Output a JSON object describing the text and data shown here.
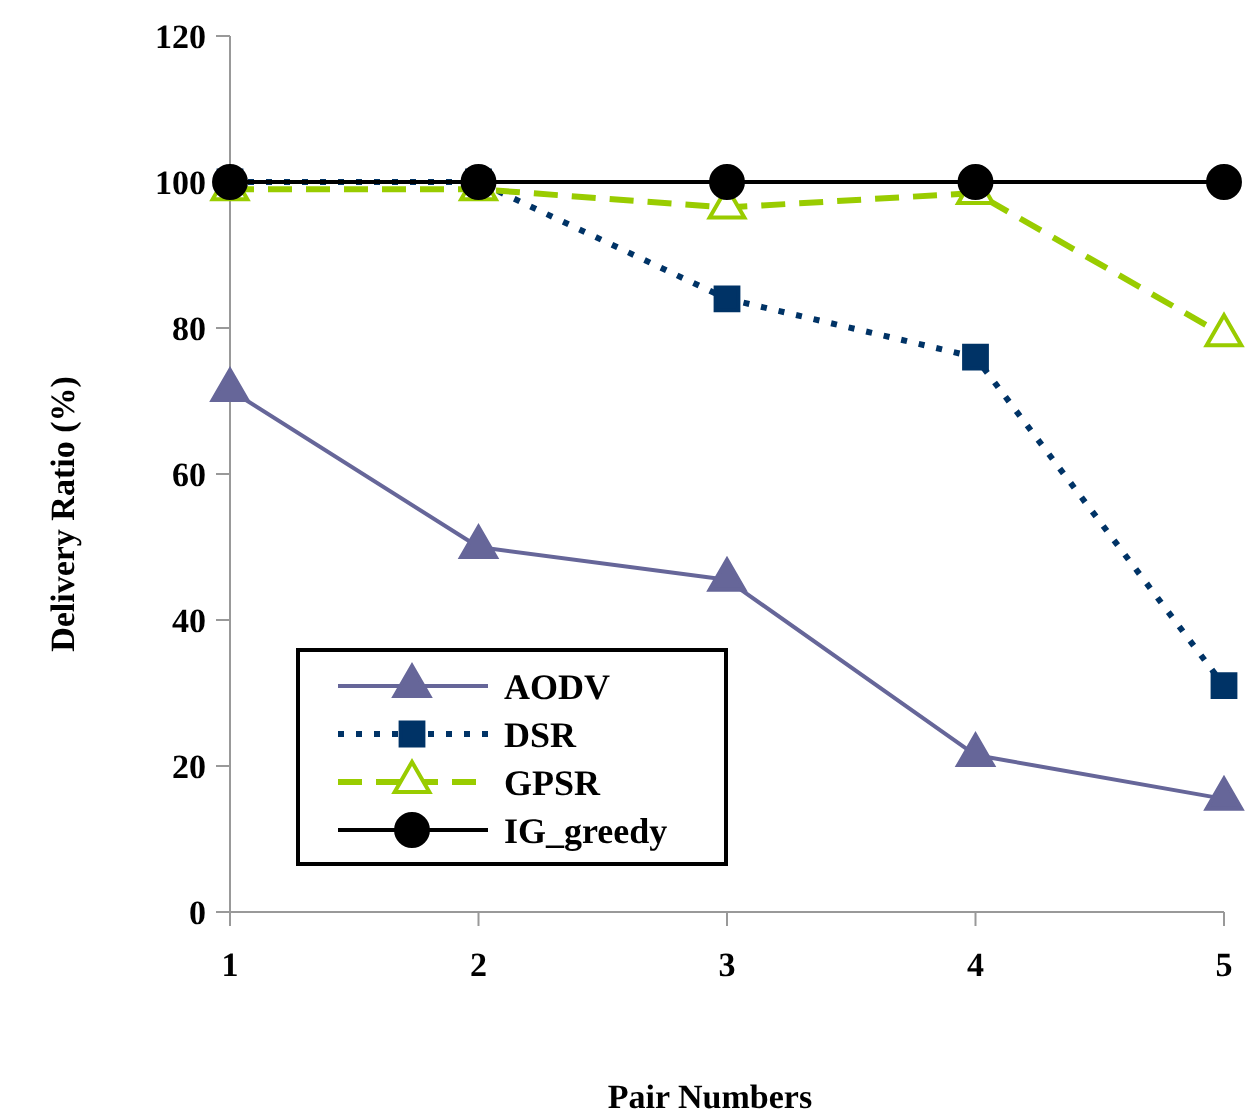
{
  "chart_data": {
    "type": "line",
    "xlabel": "Pair Numbers",
    "ylabel": "Delivery Ratio (%)",
    "x": [
      1,
      2,
      3,
      4,
      5
    ],
    "xlim": [
      1,
      5
    ],
    "xticks": [
      1,
      2,
      3,
      4,
      5
    ],
    "ylim": [
      0,
      120
    ],
    "yticks": [
      0,
      20,
      40,
      60,
      80,
      100,
      120
    ],
    "grid": false,
    "legend": "bottom left",
    "series": [
      {
        "name": "AODV",
        "color": "#666699",
        "marker": "triangle",
        "line_style": "solid",
        "values": [
          71.5,
          50,
          45.5,
          21.5,
          15.5
        ]
      },
      {
        "name": "DSR",
        "color": "#003366",
        "marker": "square",
        "line_style": "dotted",
        "values": [
          100,
          100,
          84,
          76,
          31
        ]
      },
      {
        "name": "GPSR",
        "color": "#99cc00",
        "marker": "triangle",
        "line_style": "dashed",
        "values": [
          99,
          99,
          96.5,
          98.5,
          79
        ]
      },
      {
        "name": "IG_greedy",
        "color": "#000000",
        "marker": "circle",
        "line_style": "solid",
        "values": [
          100,
          100,
          100,
          100,
          100
        ]
      }
    ]
  }
}
